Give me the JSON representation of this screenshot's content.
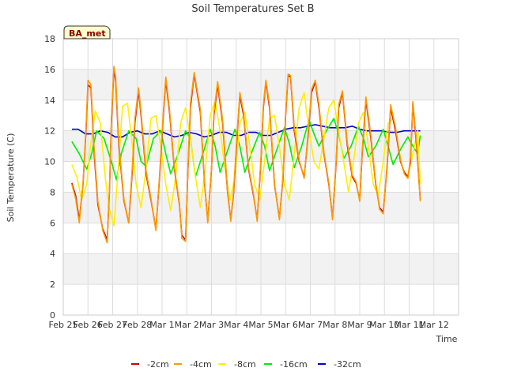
{
  "chart_data": {
    "type": "line",
    "title": "Soil Temperatures Set B",
    "xlabel": "Time",
    "ylabel": "Soil Temperature (C)",
    "badge": "BA_met",
    "ylim": [
      0,
      18
    ],
    "yticks": [
      0,
      2,
      4,
      6,
      8,
      10,
      12,
      14,
      16,
      18
    ],
    "xlim": [
      0,
      16
    ],
    "xticks": [
      {
        "x": 0,
        "label": "Feb 25"
      },
      {
        "x": 1,
        "label": "Feb 26"
      },
      {
        "x": 2,
        "label": "Feb 27"
      },
      {
        "x": 3,
        "label": "Feb 28"
      },
      {
        "x": 4,
        "label": "Mar 1"
      },
      {
        "x": 5,
        "label": "Mar 2"
      },
      {
        "x": 6,
        "label": "Mar 3"
      },
      {
        "x": 7,
        "label": "Mar 4"
      },
      {
        "x": 8,
        "label": "Mar 5"
      },
      {
        "x": 9,
        "label": "Mar 6"
      },
      {
        "x": 10,
        "label": "Mar 7"
      },
      {
        "x": 11,
        "label": "Mar 8"
      },
      {
        "x": 12,
        "label": "Mar 9"
      },
      {
        "x": 13,
        "label": "Mar 10"
      },
      {
        "x": 14,
        "label": "Mar 11"
      },
      {
        "x": 15,
        "label": "Mar 12"
      }
    ],
    "grid": true,
    "legend_position": "bottom",
    "series": [
      {
        "name": "-2cm",
        "color": "#cc0000",
        "x": [
          0.35,
          0.5,
          0.65,
          0.8,
          0.92,
          1.0,
          1.12,
          1.25,
          1.4,
          1.6,
          1.78,
          1.87,
          1.95,
          2.05,
          2.12,
          2.25,
          2.45,
          2.65,
          2.8,
          2.9,
          3.05,
          3.15,
          3.35,
          3.55,
          3.75,
          3.9,
          4.05,
          4.15,
          4.3,
          4.5,
          4.7,
          4.8,
          4.95,
          5.05,
          5.15,
          5.3,
          5.55,
          5.72,
          5.85,
          6.0,
          6.1,
          6.25,
          6.45,
          6.65,
          6.78,
          6.9,
          7.05,
          7.15,
          7.3,
          7.5,
          7.7,
          7.85,
          8.0,
          8.1,
          8.2,
          8.35,
          8.55,
          8.75,
          8.9,
          9.0,
          9.1,
          9.2,
          9.35,
          9.55,
          9.75,
          9.9,
          10.05,
          10.2,
          10.35,
          10.55,
          10.75,
          10.9,
          11.05,
          11.15,
          11.3,
          11.5,
          11.7,
          11.85,
          12.0,
          12.1,
          12.25,
          12.45,
          12.65,
          12.8,
          12.95,
          13.1,
          13.25,
          13.45,
          13.65,
          13.8,
          13.95,
          14.05,
          14.15,
          14.3,
          14.45
        ],
        "values": [
          8.6,
          7.8,
          6.2,
          8.5,
          12.0,
          15.0,
          14.8,
          10.5,
          7.2,
          5.6,
          4.9,
          8.0,
          12.5,
          16.1,
          15.2,
          11.0,
          7.5,
          6.0,
          9.5,
          12.5,
          14.6,
          13.0,
          9.2,
          7.5,
          5.6,
          9.0,
          13.0,
          15.3,
          13.2,
          9.5,
          7.2,
          5.2,
          4.9,
          9.5,
          13.5,
          15.7,
          13.2,
          8.5,
          6.1,
          9.5,
          13.0,
          15.0,
          12.5,
          8.0,
          6.2,
          8.0,
          12.0,
          14.3,
          13.0,
          9.5,
          7.8,
          6.2,
          10.0,
          13.5,
          15.2,
          13.5,
          8.5,
          6.3,
          9.0,
          13.0,
          15.6,
          15.5,
          12.0,
          10.0,
          9.0,
          11.5,
          14.5,
          15.2,
          13.5,
          10.5,
          8.5,
          6.3,
          10.0,
          13.5,
          14.5,
          11.0,
          9.0,
          8.6,
          7.5,
          10.5,
          14.0,
          11.5,
          8.5,
          7.0,
          6.7,
          9.5,
          13.5,
          12.0,
          10.0,
          9.3,
          9.0,
          10.0,
          13.8,
          11.0,
          7.5
        ]
      },
      {
        "name": "-4cm",
        "color": "#ff9900",
        "x": [
          0.35,
          0.5,
          0.65,
          0.8,
          0.92,
          1.0,
          1.12,
          1.25,
          1.4,
          1.6,
          1.78,
          1.87,
          1.95,
          2.05,
          2.12,
          2.25,
          2.45,
          2.65,
          2.8,
          2.9,
          3.05,
          3.15,
          3.35,
          3.55,
          3.75,
          3.9,
          4.05,
          4.15,
          4.3,
          4.5,
          4.7,
          4.8,
          4.95,
          5.05,
          5.15,
          5.3,
          5.55,
          5.72,
          5.85,
          6.0,
          6.1,
          6.25,
          6.45,
          6.65,
          6.78,
          6.9,
          7.05,
          7.15,
          7.3,
          7.5,
          7.7,
          7.85,
          8.0,
          8.1,
          8.2,
          8.35,
          8.55,
          8.75,
          8.9,
          9.0,
          9.1,
          9.2,
          9.35,
          9.55,
          9.75,
          9.9,
          10.05,
          10.2,
          10.35,
          10.55,
          10.75,
          10.9,
          11.05,
          11.15,
          11.3,
          11.5,
          11.7,
          11.85,
          12.0,
          12.1,
          12.25,
          12.45,
          12.65,
          12.8,
          12.95,
          13.1,
          13.25,
          13.45,
          13.65,
          13.8,
          13.95,
          14.05,
          14.15,
          14.3,
          14.45
        ],
        "values": [
          8.5,
          7.6,
          6.0,
          8.6,
          12.2,
          15.3,
          15.0,
          10.8,
          7.4,
          5.5,
          4.7,
          8.2,
          12.8,
          16.2,
          15.5,
          11.2,
          7.6,
          6.0,
          9.8,
          12.8,
          14.8,
          13.2,
          9.4,
          7.6,
          5.5,
          9.2,
          13.2,
          15.5,
          13.4,
          9.6,
          7.3,
          5.0,
          4.8,
          9.7,
          13.8,
          15.8,
          13.4,
          8.6,
          6.0,
          9.6,
          13.2,
          15.2,
          12.7,
          8.1,
          6.1,
          8.2,
          12.2,
          14.5,
          13.2,
          9.6,
          7.9,
          6.1,
          10.2,
          13.7,
          15.3,
          13.7,
          8.6,
          6.2,
          9.2,
          13.2,
          15.7,
          15.6,
          12.2,
          10.1,
          8.9,
          11.7,
          14.7,
          15.3,
          13.7,
          10.6,
          8.6,
          6.2,
          10.2,
          13.7,
          14.6,
          11.2,
          9.1,
          8.7,
          7.4,
          10.7,
          14.2,
          11.7,
          8.6,
          6.9,
          6.6,
          9.7,
          13.7,
          12.2,
          10.1,
          9.2,
          8.9,
          10.2,
          13.9,
          11.2,
          7.4
        ]
      },
      {
        "name": "-8cm",
        "color": "#ffee00",
        "x": [
          0.35,
          0.55,
          0.75,
          0.95,
          1.1,
          1.3,
          1.5,
          1.7,
          1.85,
          2.05,
          2.2,
          2.4,
          2.6,
          2.8,
          2.95,
          3.15,
          3.35,
          3.55,
          3.75,
          3.95,
          4.15,
          4.35,
          4.55,
          4.75,
          4.95,
          5.15,
          5.35,
          5.55,
          5.75,
          5.95,
          6.15,
          6.35,
          6.55,
          6.75,
          6.95,
          7.15,
          7.35,
          7.55,
          7.75,
          7.95,
          8.15,
          8.35,
          8.55,
          8.75,
          8.95,
          9.15,
          9.35,
          9.55,
          9.75,
          9.95,
          10.15,
          10.35,
          10.55,
          10.75,
          10.95,
          11.15,
          11.35,
          11.55,
          11.75,
          11.95,
          12.15,
          12.35,
          12.55,
          12.75,
          12.95,
          13.15,
          13.35,
          13.55,
          13.75,
          13.95,
          14.15,
          14.35,
          14.45
        ],
        "values": [
          9.8,
          9.0,
          7.5,
          8.5,
          11.0,
          13.3,
          12.5,
          9.0,
          7.0,
          5.8,
          9.0,
          13.6,
          13.8,
          11.0,
          8.5,
          7.0,
          9.5,
          12.8,
          13.0,
          11.0,
          8.5,
          6.8,
          9.0,
          12.5,
          13.5,
          11.5,
          9.0,
          7.0,
          9.5,
          13.0,
          14.0,
          12.0,
          9.5,
          7.5,
          9.0,
          12.5,
          13.2,
          11.0,
          8.5,
          7.5,
          10.0,
          12.8,
          13.0,
          11.0,
          8.5,
          7.5,
          10.5,
          13.5,
          14.5,
          12.0,
          10.0,
          9.5,
          11.5,
          13.5,
          14.0,
          12.0,
          10.0,
          8.0,
          10.0,
          12.5,
          13.2,
          11.0,
          8.5,
          7.8,
          10.0,
          12.5,
          12.8,
          11.0,
          9.5,
          9.0,
          10.5,
          12.0,
          8.5
        ]
      },
      {
        "name": "-16cm",
        "color": "#00ee00",
        "x": [
          0.35,
          0.65,
          0.95,
          1.15,
          1.35,
          1.65,
          1.95,
          2.15,
          2.35,
          2.65,
          2.95,
          3.15,
          3.35,
          3.65,
          3.95,
          4.15,
          4.35,
          4.65,
          4.95,
          5.15,
          5.35,
          5.65,
          5.95,
          6.15,
          6.35,
          6.65,
          6.95,
          7.15,
          7.35,
          7.65,
          7.95,
          8.15,
          8.35,
          8.65,
          8.95,
          9.15,
          9.35,
          9.65,
          9.95,
          10.15,
          10.35,
          10.65,
          10.95,
          11.15,
          11.35,
          11.65,
          11.95,
          12.15,
          12.35,
          12.65,
          12.95,
          13.15,
          13.35,
          13.65,
          13.95,
          14.15,
          14.35,
          14.45
        ],
        "values": [
          11.3,
          10.5,
          9.5,
          10.5,
          12.0,
          11.5,
          10.0,
          8.8,
          10.5,
          12.0,
          11.5,
          10.0,
          9.7,
          11.5,
          12.0,
          10.5,
          9.2,
          10.5,
          12.0,
          11.5,
          9.0,
          10.5,
          12.1,
          11.0,
          9.3,
          10.7,
          12.1,
          11.0,
          9.3,
          10.7,
          11.9,
          11.0,
          9.4,
          10.8,
          12.2,
          11.2,
          9.6,
          11.0,
          12.7,
          11.8,
          11.0,
          12.0,
          12.8,
          11.8,
          10.2,
          11.0,
          12.3,
          11.5,
          10.3,
          11.0,
          12.1,
          11.0,
          9.8,
          10.8,
          11.6,
          11.0,
          10.5,
          11.7
        ]
      },
      {
        "name": "-32cm",
        "color": "#0000cc",
        "x": [
          0.35,
          0.6,
          0.9,
          1.2,
          1.5,
          1.8,
          2.1,
          2.4,
          2.7,
          3.0,
          3.3,
          3.6,
          3.9,
          4.2,
          4.5,
          4.8,
          5.1,
          5.4,
          5.7,
          6.0,
          6.3,
          6.6,
          6.9,
          7.2,
          7.5,
          7.8,
          8.1,
          8.4,
          8.7,
          9.0,
          9.3,
          9.6,
          9.9,
          10.2,
          10.5,
          10.8,
          11.1,
          11.4,
          11.7,
          12.0,
          12.3,
          12.6,
          12.9,
          13.2,
          13.5,
          13.8,
          14.1,
          14.4,
          14.45
        ],
        "values": [
          12.1,
          12.1,
          11.8,
          11.8,
          12.0,
          11.9,
          11.6,
          11.6,
          11.9,
          12.0,
          11.8,
          11.8,
          12.0,
          11.8,
          11.6,
          11.7,
          11.9,
          11.8,
          11.6,
          11.7,
          11.9,
          11.9,
          11.7,
          11.7,
          11.9,
          11.9,
          11.7,
          11.7,
          11.9,
          12.1,
          12.2,
          12.2,
          12.3,
          12.4,
          12.3,
          12.2,
          12.2,
          12.2,
          12.3,
          12.1,
          12.0,
          12.0,
          12.0,
          11.9,
          11.9,
          12.0,
          12.0,
          12.0,
          12.0
        ]
      }
    ]
  },
  "colors": {
    "band": "#f2f2f2",
    "grid": "#dddddd",
    "badge_fill": "#ffffcc",
    "badge_border": "#333333"
  }
}
